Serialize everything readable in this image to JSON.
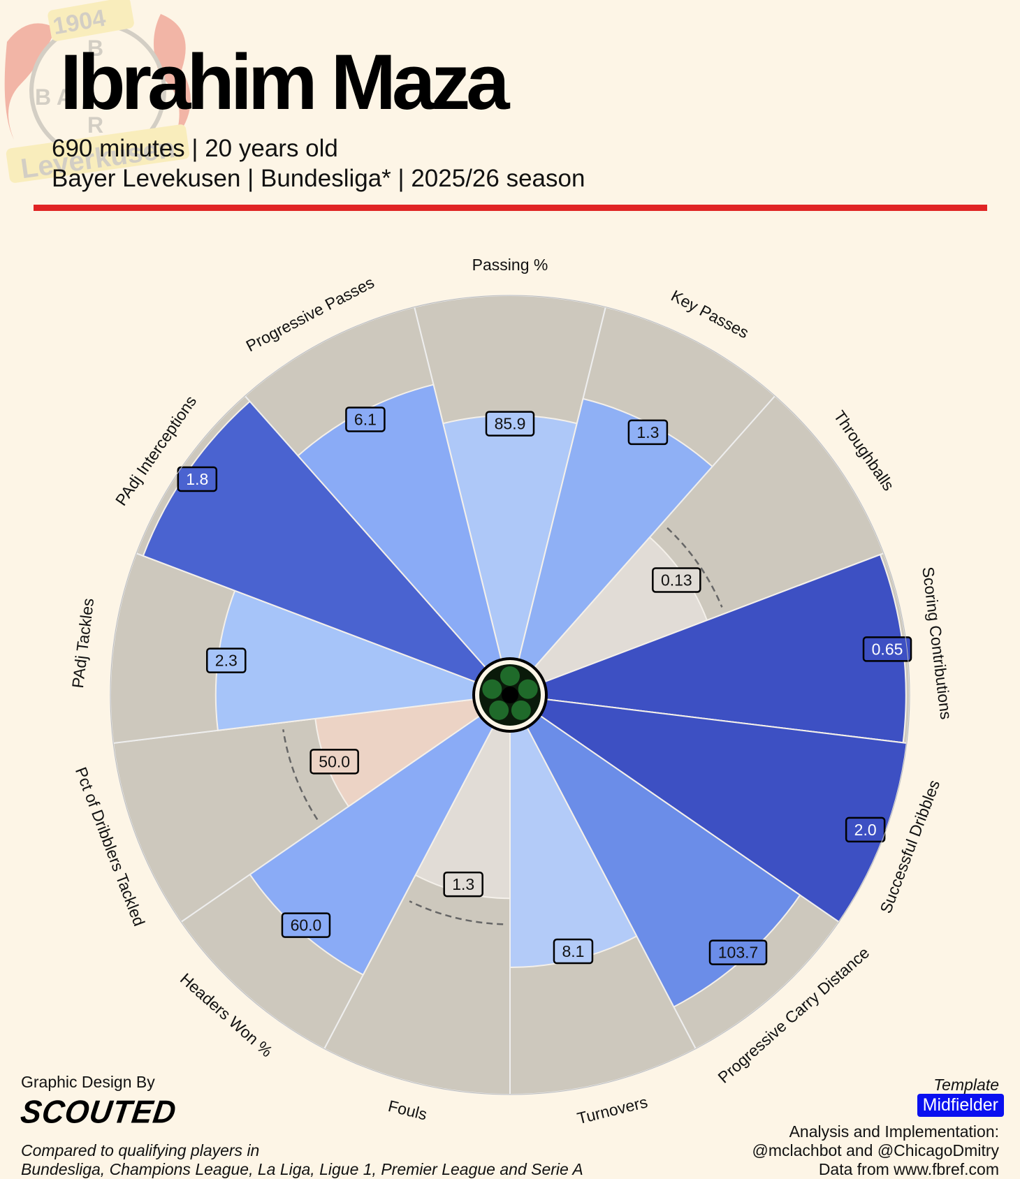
{
  "header": {
    "player_name": "Ibrahim Maza",
    "line1": "690 minutes | 20 years old",
    "line2": "Bayer Levekusen | Bundesliga* | 2025/26 season",
    "rule_color": "#e02424",
    "logo": {
      "year": "1904",
      "text": "Leverkusen",
      "letters": "BAYER"
    }
  },
  "chart_data": {
    "type": "pizza",
    "value_scale": "percentile",
    "range": [
      0,
      100
    ],
    "categories": [
      "Passing %",
      "Key Passes",
      "Throughballs",
      "Scoring Contributions",
      "Successful Dribbles",
      "Progressive Carry Distance",
      "Turnovers",
      "Fouls",
      "Headers Won %",
      "Pct of Dribblers Tackled",
      "PAdj Tackles",
      "PAdj Interceptions",
      "Progressive Passes"
    ],
    "percentiles": [
      67,
      74,
      48,
      99,
      100,
      87,
      65,
      46,
      77,
      44,
      71,
      98,
      78
    ],
    "value_labels": [
      "85.9",
      "1.3",
      "0.13",
      "0.65",
      "2.0",
      "103.7",
      "8.1",
      "1.3",
      "60.0",
      "50.0",
      "2.3",
      "1.8",
      "6.1"
    ],
    "colors": [
      "#aec8f8",
      "#8fb0f5",
      "#e1dcd6",
      "#3d50c3",
      "#3d50c3",
      "#6b8de8",
      "#b3cbf8",
      "#e1dcd6",
      "#8aabf6",
      "#ecd3c5",
      "#a6c4f9",
      "#4a63d0",
      "#8aabf6"
    ],
    "background_color": "#cdc8bd",
    "average_marker_slices": [
      "Throughballs",
      "Fouls",
      "Pct of Dribblers Tackled"
    ]
  },
  "footer": {
    "design_by": "Graphic Design By",
    "brand": "SCOUTED",
    "compared_line1": "Compared to qualifying players in",
    "compared_line2": "Bundesliga, Champions League, La Liga, Ligue 1, Premier League and Serie A",
    "template_label": "Template",
    "template_value": "Midfielder",
    "analysis_label": "Analysis and Implementation:",
    "authors": "@mclachbot and @ChicagoDmitry",
    "source": "Data from www.fbref.com"
  }
}
